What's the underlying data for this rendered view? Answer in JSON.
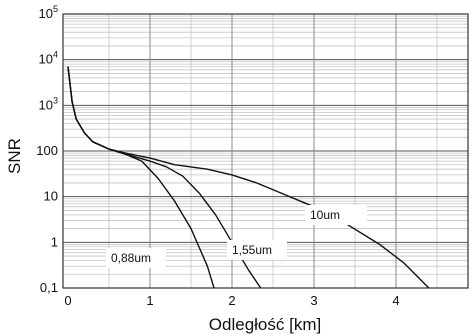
{
  "chart_data": {
    "type": "line",
    "title": "",
    "xlabel": "Odległość [km]",
    "ylabel": "SNR",
    "xlim": [
      0,
      4.5
    ],
    "ylim": [
      0.1,
      100000
    ],
    "y_scale": "log",
    "grid": true,
    "legend": "inline labels",
    "x_ticks": [
      0,
      1,
      2,
      3,
      4
    ],
    "x_tick_labels": [
      "0",
      "1",
      "2",
      "3",
      "4"
    ],
    "y_ticks": [
      0.1,
      1,
      10,
      100,
      1000,
      10000,
      100000
    ],
    "y_tick_labels": [
      {
        "base": "0,1",
        "exp": ""
      },
      {
        "base": "1",
        "exp": ""
      },
      {
        "base": "10",
        "exp": ""
      },
      {
        "base": "100",
        "exp": ""
      },
      {
        "base": "10",
        "exp": "3"
      },
      {
        "base": "10",
        "exp": "4"
      },
      {
        "base": "10",
        "exp": "5"
      }
    ],
    "series": [
      {
        "name": "0,88um",
        "x": [
          0,
          0.05,
          0.1,
          0.2,
          0.3,
          0.5,
          0.7,
          0.9,
          1.1,
          1.3,
          1.5,
          1.7,
          1.78
        ],
        "y": [
          7000,
          1200,
          500,
          250,
          160,
          110,
          85,
          60,
          25,
          8,
          2,
          0.3,
          0.1
        ]
      },
      {
        "name": "1,55um",
        "x": [
          0,
          0.05,
          0.1,
          0.2,
          0.3,
          0.5,
          0.7,
          1.0,
          1.2,
          1.4,
          1.6,
          1.8,
          2.0,
          2.2,
          2.35
        ],
        "y": [
          7000,
          1200,
          500,
          250,
          160,
          110,
          85,
          60,
          45,
          28,
          12,
          4,
          1,
          0.25,
          0.1
        ]
      },
      {
        "name": "10um",
        "x": [
          0,
          0.05,
          0.1,
          0.2,
          0.3,
          0.5,
          0.7,
          1.0,
          1.3,
          1.7,
          2.0,
          2.3,
          2.6,
          3.0,
          3.4,
          3.8,
          4.1,
          4.4
        ],
        "y": [
          7000,
          1200,
          500,
          250,
          160,
          110,
          90,
          70,
          50,
          40,
          30,
          20,
          12,
          6,
          2.5,
          0.9,
          0.35,
          0.1
        ]
      }
    ],
    "series_labels": [
      "10um",
      "1,55um",
      "0,88um"
    ]
  }
}
